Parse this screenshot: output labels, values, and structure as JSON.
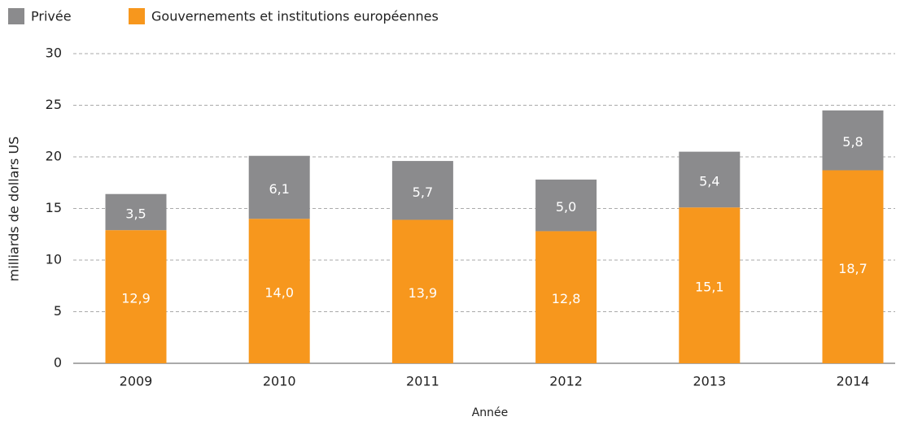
{
  "chart_data": {
    "type": "bar",
    "stacked": true,
    "categories": [
      "2009",
      "2010",
      "2011",
      "2012",
      "2013",
      "2014"
    ],
    "series": [
      {
        "name": "Gouvernements et institutions européennes",
        "color": "#f7971d",
        "values": [
          12.9,
          14.0,
          13.9,
          12.8,
          15.1,
          18.7
        ],
        "value_labels": [
          "12,9",
          "14,0",
          "13,9",
          "12,8",
          "15,1",
          "18,7"
        ]
      },
      {
        "name": "Privée",
        "color": "#8b8b8d",
        "values": [
          3.5,
          6.1,
          5.7,
          5.0,
          5.4,
          5.8
        ],
        "value_labels": [
          "3,5",
          "6,1",
          "5,7",
          "5,0",
          "5,4",
          "5,8"
        ]
      }
    ],
    "legend_order": [
      1,
      0
    ],
    "xlabel": "Année",
    "ylabel": "milliards de dollars US",
    "ylim": [
      0,
      30
    ],
    "yticks": [
      0,
      5,
      10,
      15,
      20,
      25,
      30
    ],
    "grid": true
  }
}
